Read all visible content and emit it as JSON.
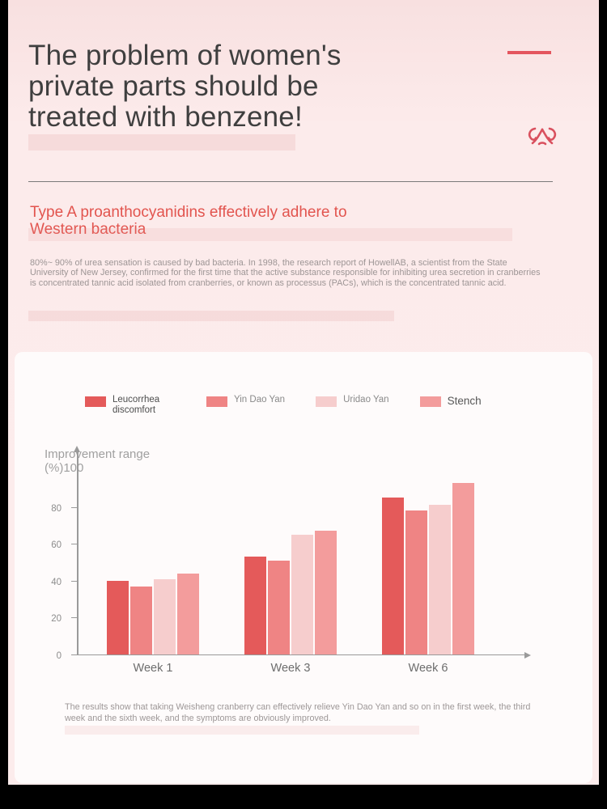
{
  "page": {
    "title_lines": [
      "The problem of women's",
      "private parts should be",
      "treated with benzene!"
    ],
    "heading_lines": [
      "Type A proanthocyanidins effectively adhere to",
      "Western bacteria"
    ],
    "body": "80%~ 90% of urea sensation is caused by bad bacteria. In 1998, the research report of HowellAB, a scientist from the State University of New Jersey, confirmed for the first time that the active substance responsible for inhibiting urea secretion in cranberries is concentrated tannic acid isolated from cranberries, or known as processus (PACs), which is the concentrated tannic acid."
  },
  "colors": {
    "accent_red": "#e2544e",
    "dash_red": "#e4555e",
    "icon_red": "#d9505e",
    "page_background": "#fbe9e9",
    "card_background": "#fefbfb",
    "frame_black": "#000000",
    "axis_gray": "#9a9a9a"
  },
  "chart_data": {
    "type": "bar",
    "title": "",
    "categories": [
      "Week 1",
      "Week 3",
      "Week 6"
    ],
    "series": [
      {
        "name": "Leucorrhea discomfort",
        "color": "#e45a5a",
        "values": [
          40,
          53,
          85
        ]
      },
      {
        "name": "Yin Dao Yan",
        "color": "#ef8484",
        "values": [
          37,
          51,
          78
        ]
      },
      {
        "name": "Uridao Yan",
        "color": "#f6cdcd",
        "values": [
          41,
          65,
          81
        ]
      },
      {
        "name": "Stench",
        "color": "#f39c9c",
        "values": [
          44,
          67,
          93
        ]
      }
    ],
    "xlabel": "",
    "ylabel": "Improvement range (%)",
    "ylabel_lines": [
      "Improvement range",
      "(%)100"
    ],
    "y_ticks": [
      0,
      20,
      40,
      60,
      80
    ],
    "ylim": [
      0,
      100
    ],
    "grid": false,
    "legend_position": "top",
    "caption": "The results show that taking Weisheng cranberry can effectively relieve Yin Dao Yan and so on in the first week, the third week and the sixth week, and the symptoms are obviously improved."
  }
}
